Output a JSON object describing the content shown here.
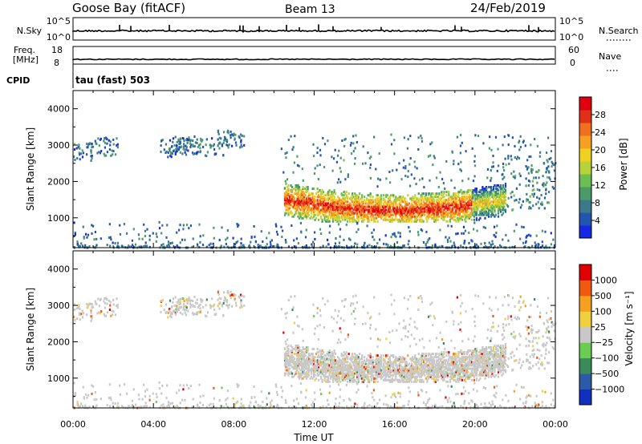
{
  "header": {
    "station": "Goose Bay (fitACF)",
    "beam": "Beam 13",
    "date": "24/Feb/2019"
  },
  "nsky": {
    "label": "N.Sky",
    "ticks": [
      "10^5",
      "10^0"
    ]
  },
  "nsearch": {
    "label": "N.Search",
    "ticks": [
      "10^5",
      "10^0"
    ]
  },
  "freq": {
    "label_top": "Freq.",
    "label_bottom": "[MHz]",
    "ticks": [
      "18",
      "8"
    ]
  },
  "nave": {
    "label": "Nave",
    "ticks": [
      "60",
      "0"
    ]
  },
  "cpid": {
    "label": "CPID",
    "value": "tau (fast) 503"
  },
  "xaxis": {
    "label": "Time UT",
    "ticks": [
      "00:00",
      "04:00",
      "08:00",
      "12:00",
      "16:00",
      "20:00",
      "00:00"
    ]
  },
  "chart_data": [
    {
      "type": "heatmap",
      "title": "",
      "xlabel": "",
      "ylabel": "Slant Range [km]",
      "xlim": [
        0,
        24
      ],
      "ylim": [
        180,
        4500
      ],
      "yticks": [
        1000,
        2000,
        3000,
        4000
      ],
      "colorbar": {
        "label": "Power [dB]",
        "ticks": [
          "28",
          "24",
          "20",
          "16",
          "12",
          "8",
          "4"
        ],
        "range": [
          0,
          30
        ]
      },
      "colormap": [
        "#1428e6",
        "#2255b0",
        "#3b7a8a",
        "#4a9a6a",
        "#6bbf50",
        "#b8d23a",
        "#f0d020",
        "#f5a020",
        "#f07020",
        "#e03018",
        "#e00010"
      ],
      "features": [
        {
          "name": "main echo band",
          "x_range": [
            10.5,
            21.5
          ],
          "slant_range_km": [
            900,
            1900
          ],
          "value_range": [
            8,
            30
          ]
        },
        {
          "name": "early sporadic echoes",
          "x_range": [
            0,
            7.5
          ],
          "slant_range_km": [
            2500,
            3300
          ],
          "value_range": [
            2,
            12
          ]
        },
        {
          "name": "near-range clutter",
          "x_range": [
            0,
            24
          ],
          "slant_range_km": [
            180,
            800
          ],
          "value_range": [
            2,
            10
          ]
        }
      ]
    },
    {
      "type": "heatmap",
      "title": "",
      "xlabel": "Time UT",
      "ylabel": "Slant Range [km]",
      "xlim": [
        0,
        24
      ],
      "ylim": [
        180,
        4500
      ],
      "yticks": [
        1000,
        2000,
        3000,
        4000
      ],
      "colorbar": {
        "label": "Velocity [m s⁻¹]",
        "ticks": [
          "1000",
          "500",
          "100",
          "25",
          "−25",
          "−100",
          "−500",
          "−1000"
        ]
      },
      "colormap": [
        "#e00000",
        "#f05a10",
        "#f5a020",
        "#f0d040",
        "#c8c8c8",
        "#6acc50",
        "#3b8a5a",
        "#2c5aa8",
        "#1030c0"
      ],
      "features": [
        {
          "name": "main echo band",
          "x_range": [
            10.5,
            21.5
          ],
          "slant_range_km": [
            900,
            1900
          ],
          "velocity": "near zero (−25 to 25)"
        },
        {
          "name": "near-range clutter",
          "x_range": [
            0,
            24
          ],
          "slant_range_km": [
            180,
            800
          ],
          "velocity": "mixed"
        }
      ]
    }
  ]
}
